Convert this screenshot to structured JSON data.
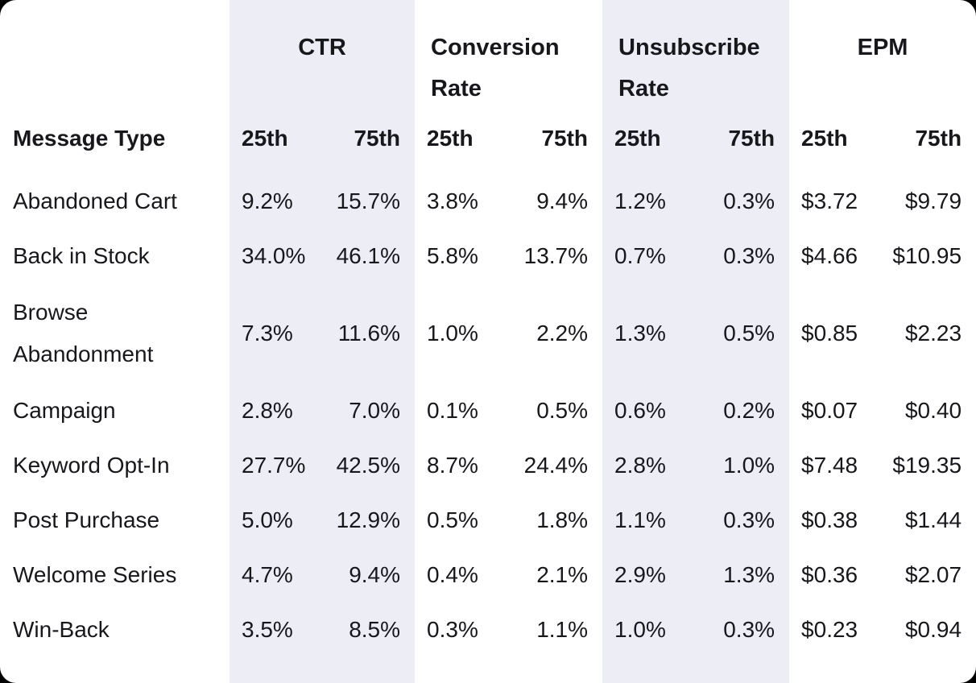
{
  "chart_data": {
    "type": "table",
    "row_header": "Message Type",
    "column_groups": [
      {
        "id": "ctr",
        "label": "CTR",
        "banded": true,
        "align": "center"
      },
      {
        "id": "conversion",
        "label": "Conversion Rate",
        "banded": false,
        "align": "left"
      },
      {
        "id": "unsubscribe",
        "label": "Unsubscribe Rate",
        "banded": true,
        "align": "left"
      },
      {
        "id": "epm",
        "label": "EPM",
        "banded": false,
        "align": "center"
      }
    ],
    "percentile_labels": {
      "p25": "25th",
      "p75": "75th"
    },
    "rows": [
      {
        "label": "Abandoned Cart",
        "ctr25": "9.2%",
        "ctr75": "15.7%",
        "conv25": "3.8%",
        "conv75": "9.4%",
        "unsub25": "1.2%",
        "unsub75": "0.3%",
        "epm25": "$3.72",
        "epm75": "$9.79"
      },
      {
        "label": "Back in Stock",
        "ctr25": "34.0%",
        "ctr75": "46.1%",
        "conv25": "5.8%",
        "conv75": "13.7%",
        "unsub25": "0.7%",
        "unsub75": "0.3%",
        "epm25": "$4.66",
        "epm75": "$10.95"
      },
      {
        "label": "Browse Abandonment",
        "ctr25": "7.3%",
        "ctr75": "11.6%",
        "conv25": "1.0%",
        "conv75": "2.2%",
        "unsub25": "1.3%",
        "unsub75": "0.5%",
        "epm25": "$0.85",
        "epm75": "$2.23"
      },
      {
        "label": "Campaign",
        "ctr25": "2.8%",
        "ctr75": "7.0%",
        "conv25": "0.1%",
        "conv75": "0.5%",
        "unsub25": "0.6%",
        "unsub75": "0.2%",
        "epm25": "$0.07",
        "epm75": "$0.40"
      },
      {
        "label": "Keyword Opt-In",
        "ctr25": "27.7%",
        "ctr75": "42.5%",
        "conv25": "8.7%",
        "conv75": "24.4%",
        "unsub25": "2.8%",
        "unsub75": "1.0%",
        "epm25": "$7.48",
        "epm75": "$19.35"
      },
      {
        "label": "Post Purchase",
        "ctr25": "5.0%",
        "ctr75": "12.9%",
        "conv25": "0.5%",
        "conv75": "1.8%",
        "unsub25": "1.1%",
        "unsub75": "0.3%",
        "epm25": "$0.38",
        "epm75": "$1.44"
      },
      {
        "label": "Welcome Series",
        "ctr25": "4.7%",
        "ctr75": "9.4%",
        "conv25": "0.4%",
        "conv75": "2.1%",
        "unsub25": "2.9%",
        "unsub75": "1.3%",
        "epm25": "$0.36",
        "epm75": "$2.07"
      },
      {
        "label": "Win-Back",
        "ctr25": "3.5%",
        "ctr75": "8.5%",
        "conv25": "0.3%",
        "conv75": "1.1%",
        "unsub25": "1.0%",
        "unsub75": "0.3%",
        "epm25": "$0.23",
        "epm75": "$0.94"
      }
    ],
    "colors": {
      "band_background": "#EDEDF5",
      "text": "#17171C",
      "card_background": "#FFFFFF",
      "page_background": "#000000"
    }
  }
}
